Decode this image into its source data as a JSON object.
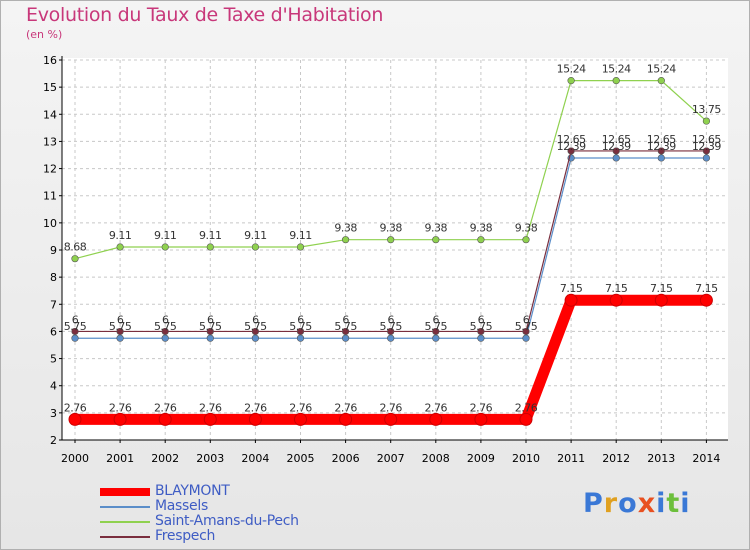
{
  "header": {
    "title": "Evolution du Taux de Taxe d'Habitation",
    "unit": "(en %)"
  },
  "logo": {
    "text": "Proxiti"
  },
  "chart_data": {
    "type": "line",
    "title": "Evolution du Taux de Taxe d'Habitation",
    "subtitle": "(en %)",
    "xlabel": "",
    "ylabel": "",
    "x": [
      "2000",
      "2001",
      "2002",
      "2003",
      "2004",
      "2005",
      "2006",
      "2007",
      "2008",
      "2009",
      "2010",
      "2011",
      "2012",
      "2013",
      "2014"
    ],
    "ylim": [
      2,
      16
    ],
    "yticks": [
      2,
      3,
      4,
      5,
      6,
      7,
      8,
      9,
      10,
      11,
      12,
      13,
      14,
      15,
      16
    ],
    "grid": "horizontal-dashed",
    "legend": "bottom-left",
    "series": [
      {
        "name": "BLAYMONT",
        "color": "#ff0000",
        "values": [
          2.76,
          2.76,
          2.76,
          2.76,
          2.76,
          2.76,
          2.76,
          2.76,
          2.76,
          2.76,
          2.76,
          7.15,
          7.15,
          7.15,
          7.15
        ],
        "labels": [
          "2.76",
          "2.76",
          "2.76",
          "2.76",
          "2.76",
          "2.76",
          "2.76",
          "2.76",
          "2.76",
          "2.76",
          "2.76",
          "7.15",
          "7.15",
          "7.15",
          "7.15"
        ]
      },
      {
        "name": "Massels",
        "color": "#5b8ec9",
        "values": [
          5.75,
          5.75,
          5.75,
          5.75,
          5.75,
          5.75,
          5.75,
          5.75,
          5.75,
          5.75,
          5.75,
          12.39,
          12.39,
          12.39,
          12.39
        ],
        "labels": [
          "5.75",
          "5.75",
          "5.75",
          "5.75",
          "5.75",
          "5.75",
          "5.75",
          "5.75",
          "5.75",
          "5.75",
          "5.75",
          "12.39",
          "12.39",
          "12.39",
          "12.39"
        ]
      },
      {
        "name": "Saint-Amans-du-Pech",
        "color": "#8fd14f",
        "values": [
          8.68,
          9.11,
          9.11,
          9.11,
          9.11,
          9.11,
          9.38,
          9.38,
          9.38,
          9.38,
          9.38,
          15.24,
          15.24,
          15.24,
          13.75
        ],
        "labels": [
          "8.68",
          "9.11",
          "9.11",
          "9.11",
          "9.11",
          "9.11",
          "9.38",
          "9.38",
          "9.38",
          "9.38",
          "9.38",
          "15.24",
          "15.24",
          "15.24",
          "13.75"
        ]
      },
      {
        "name": "Frespech",
        "color": "#7a2e3e",
        "values": [
          6,
          6,
          6,
          6,
          6,
          6,
          6,
          6,
          6,
          6,
          6,
          12.65,
          12.65,
          12.65,
          12.65
        ],
        "labels": [
          "6",
          "6",
          "6",
          "6",
          "6",
          "6",
          "6",
          "6",
          "6",
          "6",
          "6",
          "12.65",
          "12.65",
          "12.65",
          "12.65"
        ]
      }
    ]
  }
}
